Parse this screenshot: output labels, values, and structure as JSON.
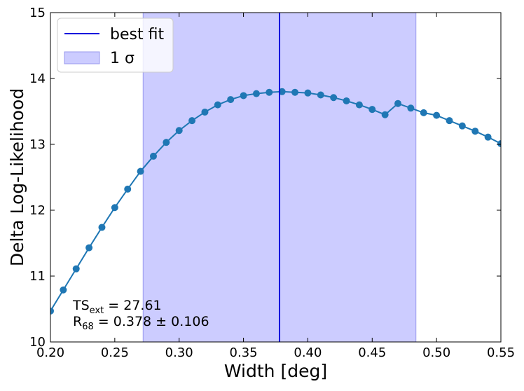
{
  "chart_data": {
    "type": "line",
    "xlabel": "Width [deg]",
    "ylabel": "Delta Log-Likelihood",
    "xlim": [
      0.2,
      0.55
    ],
    "ylim": [
      10,
      15
    ],
    "xticks": [
      "0.20",
      "0.25",
      "0.30",
      "0.35",
      "0.40",
      "0.45",
      "0.50",
      "0.55"
    ],
    "yticks": [
      "10",
      "11",
      "12",
      "13",
      "14",
      "15"
    ],
    "series": [
      {
        "color": "#1f77b4",
        "marker": "circle",
        "x": [
          0.2,
          0.21,
          0.22,
          0.23,
          0.24,
          0.25,
          0.26,
          0.27,
          0.28,
          0.29,
          0.3,
          0.31,
          0.32,
          0.33,
          0.34,
          0.35,
          0.36,
          0.37,
          0.38,
          0.39,
          0.4,
          0.41,
          0.42,
          0.43,
          0.44,
          0.45,
          0.46,
          0.47,
          0.48,
          0.49,
          0.5,
          0.51,
          0.52,
          0.53,
          0.54,
          0.55
        ],
        "y": [
          10.47,
          10.79,
          11.11,
          11.43,
          11.74,
          12.04,
          12.32,
          12.59,
          12.82,
          13.03,
          13.21,
          13.36,
          13.49,
          13.6,
          13.68,
          13.74,
          13.77,
          13.79,
          13.8,
          13.79,
          13.78,
          13.75,
          13.71,
          13.66,
          13.6,
          13.53,
          13.45,
          13.62,
          13.55,
          13.48,
          13.44,
          13.36,
          13.28,
          13.2,
          13.11,
          13.01
        ]
      }
    ],
    "best_fit": {
      "x": 0.378,
      "color": "#0000dd"
    },
    "sigma_band": {
      "x_range": [
        0.272,
        0.484
      ],
      "color": "#ccccff"
    },
    "legend": {
      "placement": "top-left",
      "entries": [
        {
          "label": "best fit",
          "kind": "line",
          "color": "#0000dd"
        },
        {
          "label": "1 σ",
          "kind": "patch",
          "color": "#ccccff"
        }
      ]
    },
    "annotations": {
      "ts_prefix": "TS",
      "ts_sub": "ext",
      "ts_value": " = 27.61",
      "r_prefix": "R",
      "r_sub": "68",
      "r_value": " = 0.378 ± 0.106"
    },
    "grid": false
  }
}
